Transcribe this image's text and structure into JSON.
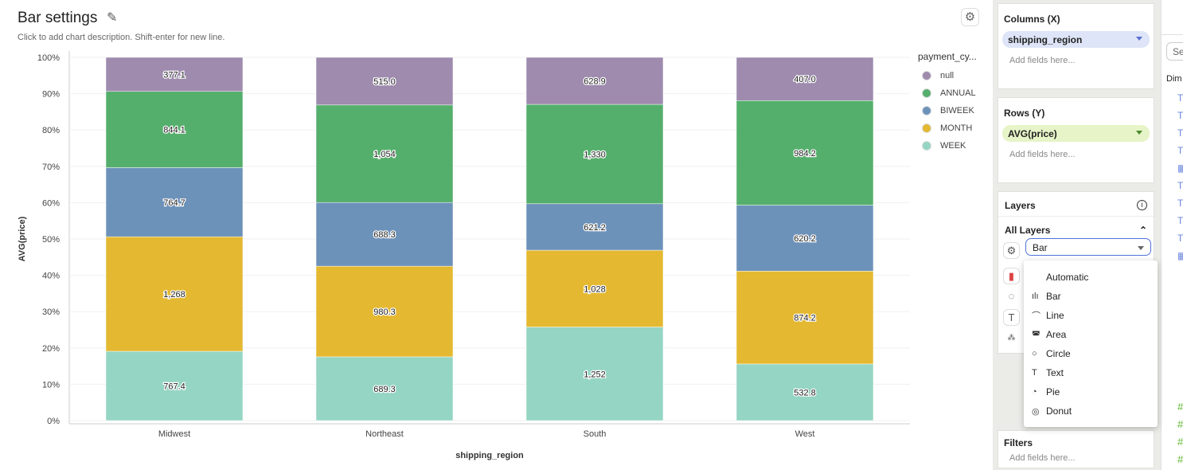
{
  "header": {
    "title": "Bar settings",
    "description": "Click to add chart description. Shift-enter for new line."
  },
  "chart_data": {
    "type": "bar",
    "stacked": true,
    "normalized": true,
    "categories": [
      "Midwest",
      "Northeast",
      "South",
      "West"
    ],
    "xlabel": "shipping_region",
    "ylabel": "AVG(price)",
    "yticks": [
      "0%",
      "10%",
      "20%",
      "30%",
      "40%",
      "50%",
      "60%",
      "70%",
      "80%",
      "90%",
      "100%"
    ],
    "ylim": [
      0,
      100
    ],
    "grid": true,
    "legend": {
      "title": "payment_cy...",
      "placement": "right"
    },
    "series": [
      {
        "name": "WEEK",
        "color": "#95d5c3",
        "values": [
          767.4,
          689.3,
          1252,
          532.8
        ],
        "labels": [
          "767.4",
          "689.3",
          "1,252",
          "532.8"
        ]
      },
      {
        "name": "MONTH",
        "color": "#e4b931",
        "values": [
          1268,
          980.3,
          1028,
          874.2
        ],
        "labels": [
          "1,268",
          "980.3",
          "1,028",
          "874.2"
        ]
      },
      {
        "name": "BIWEEK",
        "color": "#6d92ba",
        "values": [
          764.7,
          688.3,
          621.2,
          620.2
        ],
        "labels": [
          "764.7",
          "688.3",
          "621.2",
          "620.2"
        ]
      },
      {
        "name": "ANNUAL",
        "color": "#55af6c",
        "values": [
          844.1,
          1054,
          1330,
          984.2
        ],
        "labels": [
          "844.1",
          "1,054",
          "1,330",
          "984.2"
        ]
      },
      {
        "name": "null",
        "color": "#9e8bae",
        "values": [
          377.1,
          515.0,
          628.9,
          407.0
        ],
        "labels": [
          "377.1",
          "515.0",
          "628.9",
          "407.0"
        ]
      }
    ]
  },
  "legend_items": [
    {
      "label": "null",
      "color": "#9e8bae"
    },
    {
      "label": "ANNUAL",
      "color": "#55af6c"
    },
    {
      "label": "BIWEEK",
      "color": "#6d92ba"
    },
    {
      "label": "MONTH",
      "color": "#e4b931"
    },
    {
      "label": "WEEK",
      "color": "#95d5c3"
    }
  ],
  "panel": {
    "columns": {
      "title": "Columns (X)",
      "field": "shipping_region",
      "placeholder": "Add fields here..."
    },
    "rows": {
      "title": "Rows (Y)",
      "field": "AVG(price)",
      "placeholder": "Add fields here..."
    },
    "layers": {
      "title": "Layers",
      "all_layers": "All Layers",
      "mark_type": "Bar"
    },
    "filters": {
      "title": "Filters",
      "placeholder": "Add fields here..."
    }
  },
  "mark_menu": [
    {
      "label": "Automatic",
      "icon": ""
    },
    {
      "label": "Bar",
      "icon": "ılı"
    },
    {
      "label": "Line",
      "icon": "⌒"
    },
    {
      "label": "Area",
      "icon": "◚"
    },
    {
      "label": "Circle",
      "icon": "○"
    },
    {
      "label": "Text",
      "icon": "T"
    },
    {
      "label": "Pie",
      "icon": "◔"
    },
    {
      "label": "Donut",
      "icon": "◎"
    }
  ],
  "fields_panel": {
    "search_placeholder": "Se",
    "dimensions_label": "Dim"
  }
}
